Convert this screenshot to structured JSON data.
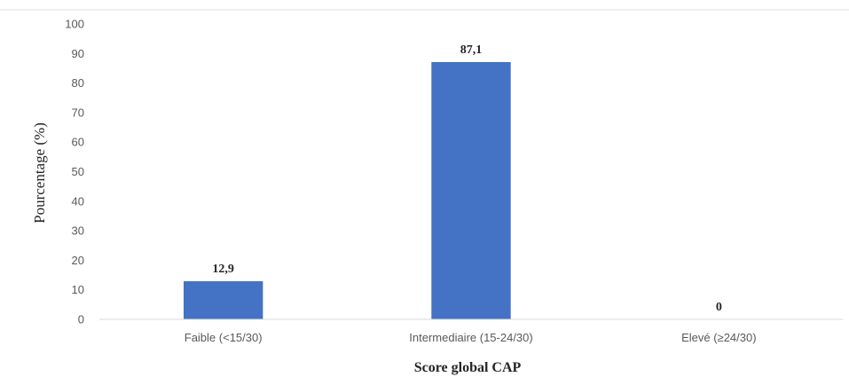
{
  "chart_data": {
    "type": "bar",
    "categories": [
      "Faible (<15/30)",
      "Intermediaire (15-24/30)",
      "Elevé (≥24/30)"
    ],
    "values": [
      12.9,
      87.1,
      0
    ],
    "data_labels": [
      "12,9",
      "87,1",
      "0"
    ],
    "xlabel": "Score global CAP",
    "ylabel": "Pourcentage (%)",
    "ylim": [
      0,
      100
    ],
    "yticks": [
      "0",
      "10",
      "20",
      "30",
      "40",
      "50",
      "60",
      "70",
      "80",
      "90",
      "100"
    ],
    "bar_color": "#4472C4",
    "grid": false,
    "legend": "none"
  }
}
